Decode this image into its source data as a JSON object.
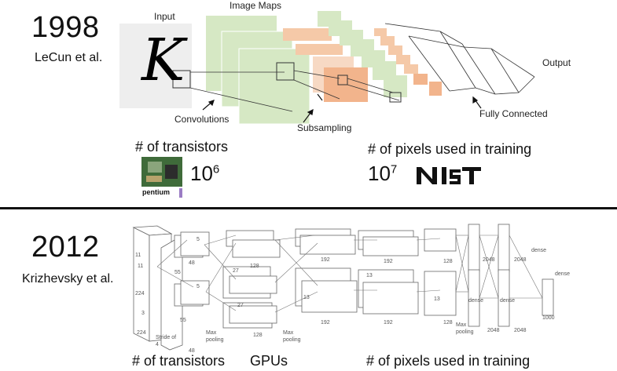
{
  "top": {
    "year": "1998",
    "author": "LeCun et al.",
    "input_label": "Input",
    "input_glyph": "K",
    "image_maps_label": "Image Maps",
    "output_label": "Output",
    "convolutions_label": "Convolutions",
    "subsampling_label": "Subsampling",
    "fully_connected_label": "Fully Connected",
    "transistors_label": "# of transistors",
    "chip_label": "pentium",
    "transistors_base": "10",
    "transistors_exp": "6",
    "pixels_label": "# of pixels used in training",
    "pixels_base": "10",
    "pixels_exp": "7",
    "nist_logo": "NIST"
  },
  "bottom": {
    "year": "2012",
    "author": "Krizhevsky et al.",
    "transistors_label": "# of transistors",
    "gpus_label": "GPUs",
    "pixels_label": "# of pixels used in training",
    "small": {
      "n224a": "224",
      "n224b": "224",
      "n11a": "11",
      "n11b": "11",
      "stride": "Stride of 4",
      "n3": "3",
      "n55a": "55",
      "n55b": "55",
      "n5a": "5",
      "n5b": "5",
      "n48a": "48",
      "n48b": "48",
      "n27a": "27",
      "n27b": "27",
      "n128a": "128",
      "n128b": "128",
      "maxpool1": "Max pooling",
      "maxpool2": "Max pooling",
      "maxpool3": "Max pooling",
      "n192a": "192",
      "n192b": "192",
      "n192c": "192",
      "n192d": "192",
      "n128c": "128",
      "n128d": "128",
      "n13a": "13",
      "n13b": "13",
      "n13c": "13",
      "n2048a": "2048",
      "n2048b": "2048",
      "n2048c": "2048",
      "n2048d": "2048",
      "dense1": "dense",
      "dense2": "dense",
      "dense3": "dense",
      "dense4": "dense",
      "n1000": "1000"
    }
  },
  "colors": {
    "green": "#d6e8c4",
    "orange": "#f2b48c",
    "grey": "#eeeeee",
    "divider": "#111111"
  }
}
